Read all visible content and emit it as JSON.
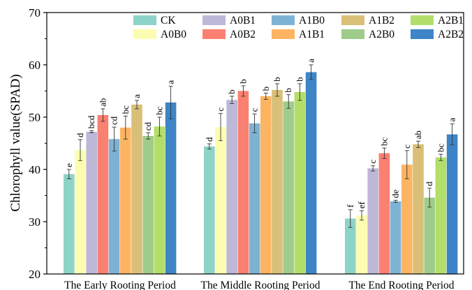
{
  "chart_data": {
    "type": "bar",
    "ylabel": "Chlorophyll value(SPAD)",
    "xlabel": "",
    "ylim": [
      20,
      70
    ],
    "yticks": [
      20,
      30,
      40,
      50,
      60,
      70
    ],
    "grid": false,
    "legend_position": "top-right",
    "error_bars": true,
    "categories": [
      "The Early Rooting Period",
      "The Middle Rooting Period",
      "The End Rooting Period"
    ],
    "series": [
      {
        "name": "CK",
        "color": "#8ed3c7",
        "values": [
          39.1,
          44.4,
          30.6
        ],
        "errors": [
          0.9,
          0.5,
          1.7
        ],
        "letters": [
          "e",
          "d",
          "f"
        ]
      },
      {
        "name": "A0B0",
        "color": "#fdfdb1",
        "values": [
          43.7,
          48.1,
          31.2
        ],
        "errors": [
          2.0,
          2.6,
          0.9
        ],
        "letters": [
          "d",
          "c",
          "ef"
        ]
      },
      {
        "name": "A0B1",
        "color": "#bdb8d8",
        "values": [
          47.2,
          53.3,
          40.2
        ],
        "errors": [
          0.2,
          0.7,
          0.5
        ],
        "letters": [
          "bcd",
          "b",
          "c"
        ]
      },
      {
        "name": "A0B2",
        "color": "#fa8072",
        "values": [
          50.4,
          55.0,
          43.1
        ],
        "errors": [
          1.2,
          1.0,
          1.0
        ],
        "letters": [
          "ab",
          "b",
          "bc"
        ]
      },
      {
        "name": "A1B0",
        "color": "#7eb2d4",
        "values": [
          45.8,
          48.8,
          33.9
        ],
        "errors": [
          2.3,
          1.8,
          0.2
        ],
        "letters": [
          "cd",
          "c",
          "de"
        ]
      },
      {
        "name": "A1B1",
        "color": "#fdb462",
        "values": [
          48.0,
          54.0,
          40.9
        ],
        "errors": [
          2.2,
          0.6,
          2.7
        ],
        "letters": [
          "bc",
          "b",
          "c"
        ]
      },
      {
        "name": "A1B2",
        "color": "#d9bf77",
        "values": [
          52.4,
          55.2,
          44.8
        ],
        "errors": [
          0.8,
          1.2,
          0.6
        ],
        "letters": [
          "a",
          "b",
          "ab"
        ]
      },
      {
        "name": "A2B0",
        "color": "#9fcc8a",
        "values": [
          46.4,
          53.0,
          34.6
        ],
        "errors": [
          0.6,
          1.3,
          1.8
        ],
        "letters": [
          "cd",
          "b",
          "d"
        ]
      },
      {
        "name": "A2B1",
        "color": "#b3de69",
        "values": [
          48.2,
          54.8,
          42.3
        ],
        "errors": [
          1.8,
          1.6,
          0.6
        ],
        "letters": [
          "bc",
          "b",
          "bc"
        ]
      },
      {
        "name": "A2B2",
        "color": "#3d85c6",
        "values": [
          52.8,
          58.6,
          46.7
        ],
        "errors": [
          3.1,
          1.4,
          2.0
        ],
        "letters": [
          "a",
          "a",
          "a"
        ]
      }
    ]
  }
}
